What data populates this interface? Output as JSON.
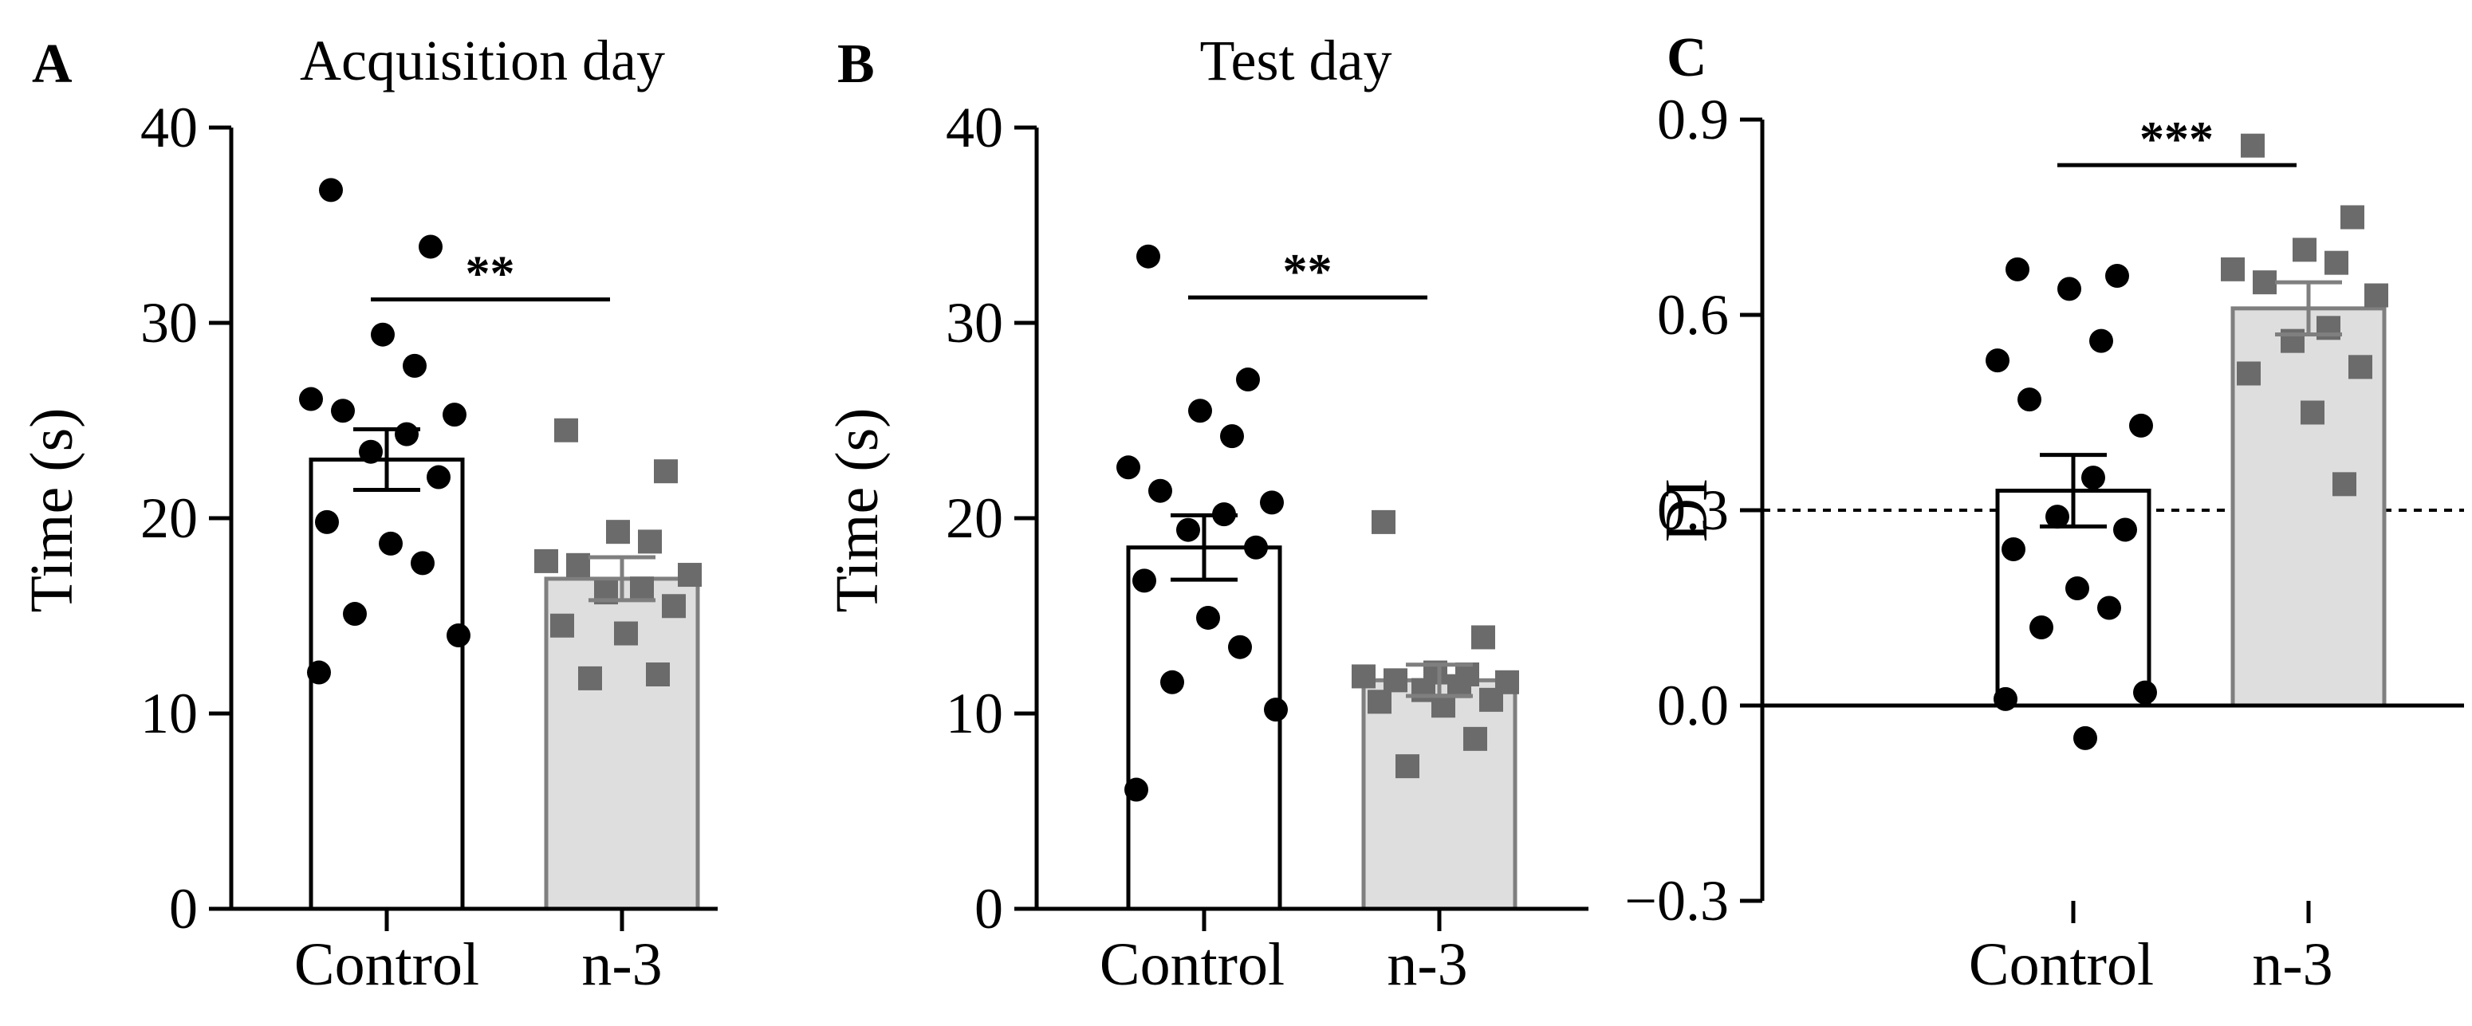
{
  "chart_data": [
    {
      "type": "bar",
      "panel_label": "A",
      "title": "Acquisition day",
      "ylabel": "Time (s)",
      "xlabel": "",
      "categories": [
        "Control",
        "n-3"
      ],
      "means": [
        23.0,
        16.9
      ],
      "sem": [
        1.55,
        1.1
      ],
      "ylim": [
        0,
        40
      ],
      "yticks": [
        0,
        10,
        20,
        30,
        40
      ],
      "ytick_labels": [
        "0",
        "10",
        "20",
        "30",
        "40"
      ],
      "points": [
        [
          36.8,
          33.9,
          29.4,
          27.8,
          26.1,
          25.5,
          25.3,
          24.3,
          23.4,
          22.1,
          19.8,
          18.7,
          17.7,
          15.1,
          14.0,
          12.1
        ],
        [
          24.5,
          22.4,
          19.3,
          18.8,
          17.8,
          17.6,
          17.1,
          16.4,
          16.2,
          15.5,
          14.5,
          14.1,
          12.0,
          11.8
        ]
      ],
      "significance": "**",
      "significance_y": 31.2,
      "colors": {
        "control_fill": "#ffffff",
        "n3_fill": "#dedede",
        "control_edge": "#000000",
        "n3_edge": "#7f7f7f",
        "control_point": "#000000",
        "n3_point": "#6b6b6b"
      }
    },
    {
      "type": "bar",
      "panel_label": "B",
      "title": "Test day",
      "ylabel": "Time (s)",
      "xlabel": "",
      "categories": [
        "Control",
        "n-3"
      ],
      "means": [
        18.5,
        11.7
      ],
      "sem": [
        1.65,
        0.8
      ],
      "ylim": [
        0,
        40
      ],
      "yticks": [
        0,
        10,
        20,
        30,
        40
      ],
      "ytick_labels": [
        "0",
        "10",
        "20",
        "30",
        "40"
      ],
      "points": [
        [
          33.4,
          27.1,
          25.5,
          24.2,
          22.6,
          21.4,
          20.8,
          20.2,
          19.4,
          18.5,
          16.8,
          14.9,
          13.4,
          11.6,
          10.2,
          6.1
        ],
        [
          19.8,
          13.9,
          12.1,
          12.0,
          11.9,
          11.7,
          11.6,
          11.4,
          11.2,
          10.7,
          10.6,
          10.4,
          8.7,
          7.3
        ]
      ],
      "significance": "**",
      "significance_y": 31.3,
      "colors": {
        "control_fill": "#ffffff",
        "n3_fill": "#dedede",
        "control_edge": "#000000",
        "n3_edge": "#7f7f7f",
        "control_point": "#000000",
        "n3_point": "#6b6b6b"
      }
    },
    {
      "type": "bar",
      "panel_label": "C",
      "title": "",
      "ylabel": "DI",
      "xlabel": "",
      "categories": [
        "Control",
        "n-3"
      ],
      "means": [
        0.33,
        0.61
      ],
      "sem": [
        0.055,
        0.04
      ],
      "ylim": [
        -0.3,
        0.9
      ],
      "yticks": [
        -0.3,
        0.0,
        0.3,
        0.6,
        0.9
      ],
      "ytick_labels": [
        "−0.3",
        "0.0",
        "0.3",
        "0.6",
        "0.9"
      ],
      "reference_line": 0.3,
      "points": [
        [
          0.67,
          0.66,
          0.64,
          0.56,
          0.53,
          0.47,
          0.43,
          0.35,
          0.29,
          0.27,
          0.24,
          0.18,
          0.15,
          0.12,
          0.02,
          0.01,
          -0.05
        ],
        [
          0.86,
          0.75,
          0.7,
          0.68,
          0.67,
          0.65,
          0.63,
          0.58,
          0.56,
          0.52,
          0.51,
          0.45,
          0.34
        ]
      ],
      "significance": "***",
      "significance_y": 0.83,
      "colors": {
        "control_fill": "#ffffff",
        "n3_fill": "#dedede",
        "control_edge": "#000000",
        "n3_edge": "#7f7f7f",
        "control_point": "#000000",
        "n3_point": "#6b6b6b"
      }
    }
  ]
}
